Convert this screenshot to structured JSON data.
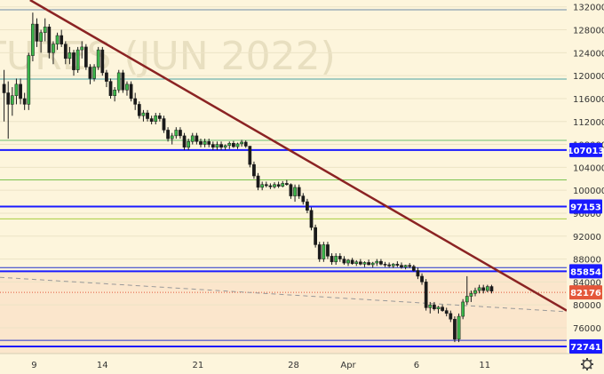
{
  "chart_data": {
    "type": "candlestick",
    "watermark": "TURES (JUN 2022)",
    "y_ticks": [
      132000,
      128000,
      124000,
      120000,
      116000,
      112000,
      108000,
      104000,
      100000,
      96000,
      92000,
      88000,
      84000,
      80000,
      76000
    ],
    "ylim": [
      71500,
      133200
    ],
    "x_ticks": [
      {
        "label": "9",
        "day": 9
      },
      {
        "label": "14",
        "day": 14
      },
      {
        "label": "21",
        "day": 21
      },
      {
        "label": "28",
        "day": 28
      },
      {
        "label": "Apr",
        "day": 32
      },
      {
        "label": "6",
        "day": 37
      },
      {
        "label": "11",
        "day": 42
      }
    ],
    "xlim": [
      6.5,
      48
    ],
    "bands": [
      {
        "from": 71500,
        "to": 86000,
        "color": "#fbe6cc"
      },
      {
        "from": 86000,
        "to": 133200,
        "color": "#fdf5dc"
      }
    ],
    "h_lines": [
      {
        "y": 131500,
        "color": "#6d8aa8",
        "width": 1
      },
      {
        "y": 119400,
        "color": "#4aa3a3",
        "width": 1
      },
      {
        "y": 108700,
        "color": "#6ec06e",
        "width": 1
      },
      {
        "y": 101800,
        "color": "#7cc24e",
        "width": 1
      },
      {
        "y": 95000,
        "color": "#a8cc3e",
        "width": 1
      },
      {
        "y": 86500,
        "color": "#2233cc",
        "width": 1
      },
      {
        "y": 73800,
        "color": "#2233cc",
        "width": 1
      }
    ],
    "levels": [
      {
        "value": 107013,
        "label": "107013",
        "color": "#1a1aff"
      },
      {
        "value": 97153,
        "label": "97153",
        "color": "#1a1aff"
      },
      {
        "value": 85854,
        "label": "85854",
        "color": "#1a1aff"
      },
      {
        "value": 72741,
        "label": "72741",
        "color": "#1a1aff"
      }
    ],
    "last_price": {
      "value": 82176,
      "label": "82176",
      "color": "#e4573a"
    },
    "trendline": {
      "points": [
        [
          8.7,
          133200
        ],
        [
          48,
          79000
        ]
      ],
      "color": "#8b2323"
    },
    "dashed_line": {
      "points": [
        [
          6.5,
          84800
        ],
        [
          48,
          78800
        ]
      ],
      "color": "#999999"
    },
    "bull_color": "#3bb54a",
    "bear_color": "#1a1a1a",
    "candles": [
      [
        6.8,
        118.5,
        121,
        112,
        117
      ],
      [
        7.1,
        117,
        119,
        109,
        115
      ],
      [
        7.4,
        115,
        118,
        113,
        116.5
      ],
      [
        7.7,
        116.5,
        119.5,
        115,
        118.5
      ],
      [
        8.0,
        118.5,
        119.5,
        115,
        116
      ],
      [
        8.3,
        116,
        117,
        114,
        115
      ],
      [
        8.6,
        115,
        124,
        114,
        123.5
      ],
      [
        8.9,
        123.5,
        131,
        122.5,
        129
      ],
      [
        9.2,
        129,
        130,
        125,
        126
      ],
      [
        9.5,
        126,
        128,
        124,
        127.5
      ],
      [
        9.8,
        127.5,
        130,
        126,
        128.5
      ],
      [
        10.1,
        128.5,
        129,
        123,
        124
      ],
      [
        10.4,
        124,
        126,
        122,
        125.5
      ],
      [
        10.7,
        125.5,
        127.5,
        124.5,
        127
      ],
      [
        11.0,
        127,
        128,
        125,
        125.5
      ],
      [
        11.3,
        125.5,
        126,
        122,
        123
      ],
      [
        11.6,
        123,
        125,
        122,
        124
      ],
      [
        11.9,
        124,
        124.5,
        120,
        121
      ],
      [
        12.2,
        121,
        125,
        120.5,
        124.5
      ],
      [
        12.5,
        124.5,
        126,
        123,
        125
      ],
      [
        12.8,
        125,
        125.5,
        121,
        121.5
      ],
      [
        13.1,
        121.5,
        122,
        118.5,
        119.5
      ],
      [
        13.4,
        119.5,
        122,
        119,
        121.5
      ],
      [
        13.7,
        121.5,
        125,
        121,
        124.5
      ],
      [
        14.0,
        124.5,
        125,
        120,
        120.5
      ],
      [
        14.3,
        120.5,
        121,
        118,
        119
      ],
      [
        14.6,
        119,
        119.5,
        116,
        116.5
      ],
      [
        14.9,
        116.5,
        118,
        115.5,
        117.5
      ],
      [
        15.2,
        117.5,
        121,
        117,
        120.5
      ],
      [
        15.5,
        120.5,
        121,
        117,
        117.5
      ],
      [
        15.8,
        117.5,
        119,
        116.5,
        118.5
      ],
      [
        16.1,
        118.5,
        119,
        115.5,
        116
      ],
      [
        16.4,
        116,
        117,
        114,
        115
      ],
      [
        16.7,
        115,
        115.5,
        112.5,
        113
      ],
      [
        17.0,
        113,
        114,
        112,
        113.5
      ],
      [
        17.3,
        113.5,
        114,
        112,
        112.5
      ],
      [
        17.6,
        112.5,
        113,
        111.5,
        112
      ],
      [
        17.9,
        112,
        113.5,
        111.5,
        113
      ],
      [
        18.2,
        113,
        113.5,
        112,
        112.5
      ],
      [
        18.5,
        112.5,
        113,
        110,
        110.5
      ],
      [
        18.8,
        110.5,
        111,
        108.5,
        109
      ],
      [
        19.1,
        109,
        110,
        108,
        109.5
      ],
      [
        19.4,
        109.5,
        111,
        109,
        110.5
      ],
      [
        19.7,
        110.5,
        111,
        109,
        109.5
      ],
      [
        20.0,
        109.5,
        110,
        107,
        107.5
      ],
      [
        20.3,
        107.5,
        109,
        107,
        108.5
      ],
      [
        20.6,
        108.5,
        110,
        108,
        109.5
      ],
      [
        20.9,
        109.5,
        110,
        108,
        108.5
      ],
      [
        21.2,
        108.5,
        109,
        107.5,
        108
      ],
      [
        21.5,
        108,
        109,
        107.5,
        108.5
      ],
      [
        21.8,
        108.5,
        109,
        107.5,
        108
      ],
      [
        22.1,
        108,
        108.5,
        107,
        107.5
      ],
      [
        22.4,
        107.5,
        108.5,
        107,
        108
      ],
      [
        22.7,
        108,
        108.5,
        107,
        107.5
      ],
      [
        23.0,
        107.5,
        108,
        107,
        107.8
      ],
      [
        23.3,
        107.8,
        108.5,
        107.2,
        108.2
      ],
      [
        23.6,
        108.2,
        108.6,
        107.4,
        107.6
      ],
      [
        23.9,
        107.6,
        108.3,
        107.2,
        108.1
      ],
      [
        24.2,
        108.1,
        108.8,
        107.6,
        108.4
      ],
      [
        24.5,
        108.4,
        108.7,
        107.4,
        107.7
      ],
      [
        24.8,
        107.7,
        106.5,
        104,
        104.5
      ],
      [
        25.1,
        104.5,
        105,
        102,
        102.5
      ],
      [
        25.4,
        102.5,
        103,
        100,
        100.5
      ],
      [
        25.7,
        100.5,
        101.5,
        100,
        101
      ],
      [
        26.0,
        101,
        101.5,
        100.5,
        100.8
      ],
      [
        26.3,
        100.8,
        101.2,
        100.2,
        100.6
      ],
      [
        26.6,
        100.6,
        101.4,
        100.3,
        101
      ],
      [
        26.9,
        101,
        101.5,
        100.4,
        100.7
      ],
      [
        27.2,
        100.7,
        101.6,
        100.5,
        101.2
      ],
      [
        27.5,
        101.2,
        101.8,
        100.8,
        101
      ],
      [
        27.8,
        101,
        101.2,
        98.5,
        99
      ],
      [
        28.1,
        99,
        101,
        98,
        100.5
      ],
      [
        28.4,
        100.5,
        101,
        98.5,
        99
      ],
      [
        28.7,
        99,
        99.5,
        97.5,
        98
      ],
      [
        29.0,
        98,
        98.5,
        96,
        96.5
      ],
      [
        29.3,
        96.5,
        97,
        93,
        93.5
      ],
      [
        29.6,
        93.5,
        94,
        90,
        90.5
      ],
      [
        29.9,
        90.5,
        91,
        87.5,
        88
      ],
      [
        30.2,
        88,
        91,
        87.5,
        90.5
      ],
      [
        30.5,
        90.5,
        91,
        88,
        88.5
      ],
      [
        30.8,
        88.5,
        89,
        87,
        87.5
      ],
      [
        31.1,
        87.5,
        89,
        87,
        88.5
      ],
      [
        31.4,
        88.5,
        89,
        87.5,
        88
      ],
      [
        31.7,
        88,
        88.5,
        87,
        87.3
      ],
      [
        32.0,
        87.3,
        88,
        86.8,
        87.8
      ],
      [
        32.3,
        87.8,
        88.2,
        87,
        87.2
      ],
      [
        32.6,
        87.2,
        87.8,
        86.8,
        87.5
      ],
      [
        32.9,
        87.5,
        88,
        86.9,
        87.1
      ],
      [
        33.2,
        87.1,
        87.6,
        86.6,
        87.4
      ],
      [
        33.5,
        87.4,
        87.9,
        86.9,
        87
      ],
      [
        33.8,
        87,
        87.5,
        86.5,
        87.3
      ],
      [
        34.1,
        87.3,
        88,
        86.8,
        87.6
      ],
      [
        34.4,
        87.6,
        88,
        86.9,
        87.1
      ],
      [
        34.7,
        87.1,
        87.5,
        86.6,
        87
      ],
      [
        35.0,
        87,
        87.4,
        86.5,
        86.8
      ],
      [
        35.3,
        86.8,
        87.3,
        86.4,
        87.1
      ],
      [
        35.6,
        87.1,
        87.6,
        86.6,
        86.9
      ],
      [
        35.9,
        86.9,
        87.4,
        86.3,
        86.6
      ],
      [
        36.2,
        86.6,
        87,
        86.2,
        86.9
      ],
      [
        36.5,
        86.9,
        87.3,
        86.4,
        86.7
      ],
      [
        36.8,
        86.7,
        87,
        85.8,
        86
      ],
      [
        37.1,
        86,
        86.5,
        84.5,
        85
      ],
      [
        37.4,
        85,
        85.5,
        83.5,
        84
      ],
      [
        37.7,
        84,
        84.5,
        79,
        79.5
      ],
      [
        38.0,
        79.5,
        80.5,
        78.5,
        80
      ],
      [
        38.3,
        80,
        80.5,
        79,
        79.3
      ],
      [
        38.6,
        79.3,
        79.8,
        78.5,
        79.6
      ],
      [
        38.9,
        79.6,
        80,
        78.8,
        79
      ],
      [
        39.2,
        79,
        79.5,
        78,
        78.5
      ],
      [
        39.5,
        78.5,
        79,
        77,
        77.5
      ],
      [
        39.8,
        77.5,
        78,
        73.5,
        74
      ],
      [
        40.1,
        74,
        78.5,
        73.5,
        78
      ],
      [
        40.4,
        78,
        81,
        77.5,
        80.5
      ],
      [
        40.7,
        80.5,
        85,
        80,
        81.5
      ],
      [
        41.0,
        81.5,
        82.5,
        80.5,
        82
      ],
      [
        41.3,
        82,
        83,
        81.5,
        82.5
      ],
      [
        41.6,
        82.5,
        83.5,
        82,
        83
      ],
      [
        41.9,
        83,
        83.5,
        82,
        82.5
      ],
      [
        42.2,
        82.5,
        83.5,
        82.2,
        83.2
      ],
      [
        42.5,
        83.2,
        83.5,
        82,
        82.4
      ]
    ]
  }
}
